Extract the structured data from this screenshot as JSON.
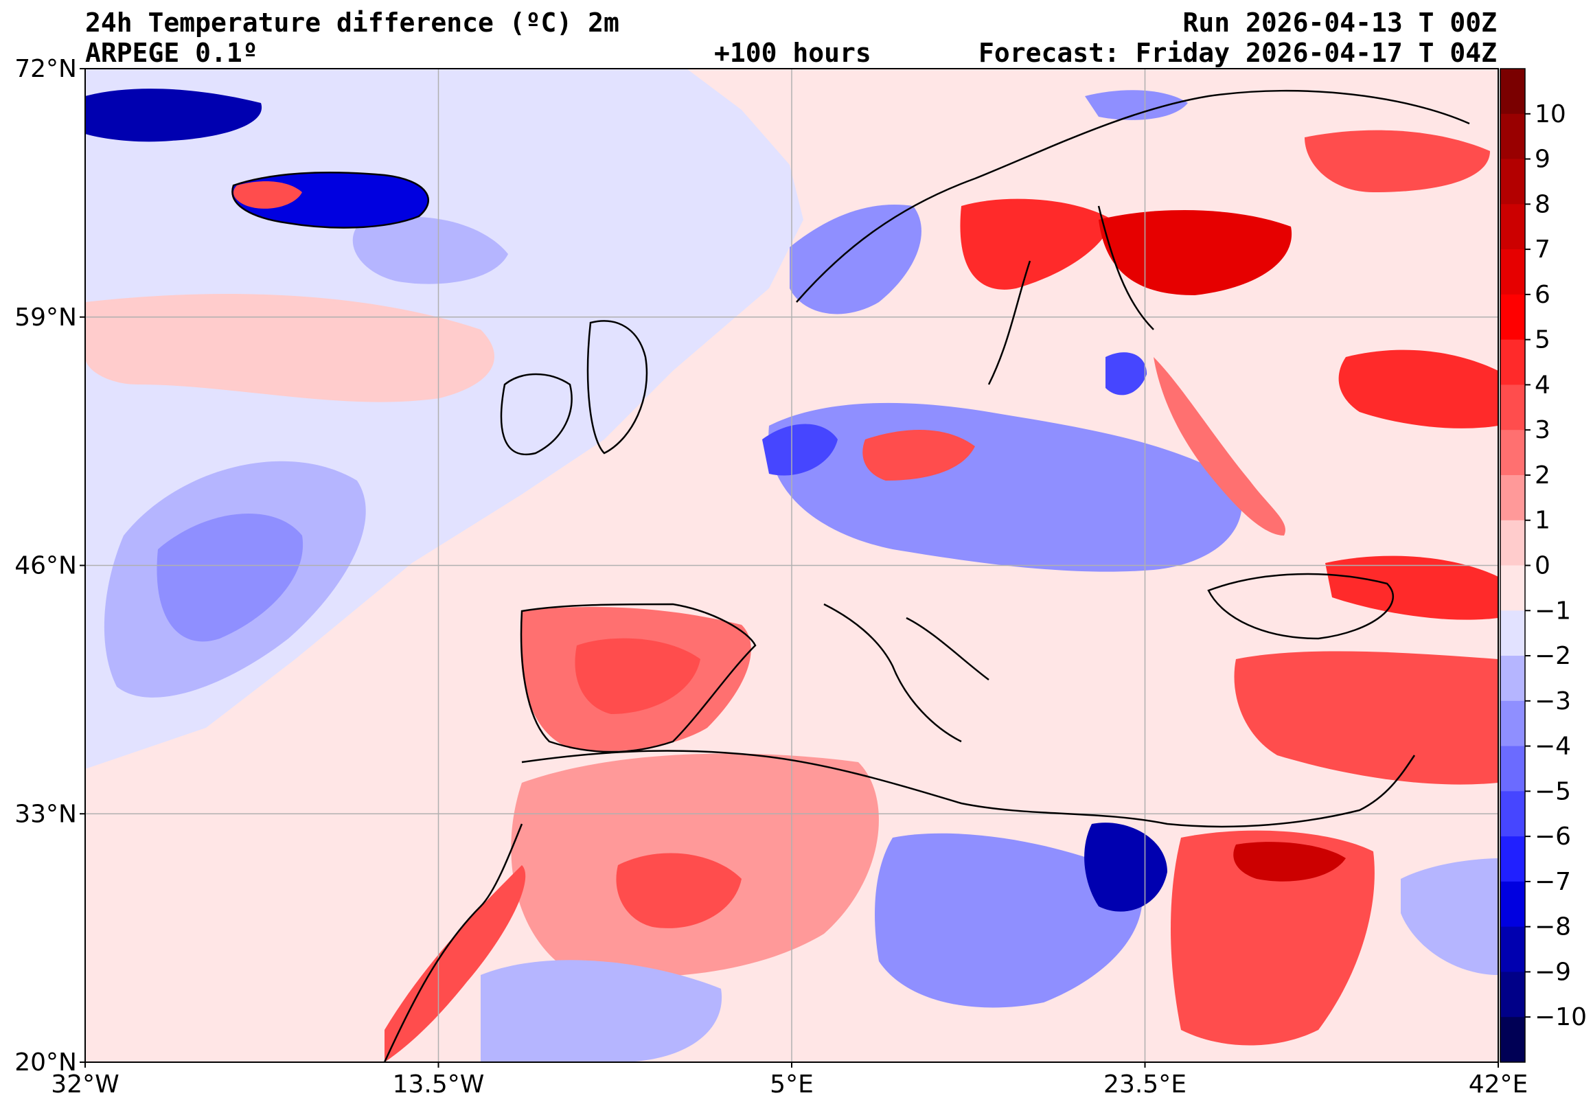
{
  "header": {
    "title_line1": "24h Temperature difference (ºC) 2m",
    "title_line2": "ARPEGE 0.1º",
    "lead_time": "+100 hours",
    "run": "Run 2026-04-13 T 00Z",
    "forecast": "Forecast: Friday 2026-04-17 T 04Z"
  },
  "map": {
    "lon_range": [
      -32,
      42
    ],
    "lat_range": [
      20,
      72
    ],
    "lat_ticks": [
      {
        "value": 72,
        "label": "72°N"
      },
      {
        "value": 59,
        "label": "59°N"
      },
      {
        "value": 46,
        "label": "46°N"
      },
      {
        "value": 33,
        "label": "33°N"
      },
      {
        "value": 20,
        "label": "20°N"
      }
    ],
    "lon_ticks": [
      {
        "value": -32,
        "label": "32°W"
      },
      {
        "value": -13.5,
        "label": "13.5°W"
      },
      {
        "value": 5,
        "label": "5°E"
      },
      {
        "value": 23.5,
        "label": "23.5°E"
      },
      {
        "value": 42,
        "label": "42°E"
      }
    ],
    "colors": {
      "ocean_background": "#ffe6e6",
      "slight_cool": "#e2e2ff",
      "coastline": "#000000",
      "gridline": "#b0b0b0"
    }
  },
  "colorbar": {
    "ticks": [
      10,
      9,
      8,
      7,
      6,
      5,
      4,
      3,
      2,
      1,
      0,
      -1,
      -2,
      -3,
      -4,
      -5,
      -6,
      -7,
      -8,
      -9,
      -10
    ],
    "labels": [
      "10",
      "9",
      "8",
      "7",
      "6",
      "5",
      "4",
      "3",
      "2",
      "1",
      "0",
      "−1",
      "−2",
      "−3",
      "−4",
      "−5",
      "−6",
      "−7",
      "−8",
      "−9",
      "−10"
    ],
    "colors_top_to_bottom": [
      "#7a0000",
      "#990000",
      "#b30000",
      "#cc0000",
      "#e60000",
      "#ff0000",
      "#ff2a2a",
      "#ff4d4d",
      "#ff7070",
      "#ff9999",
      "#ffcccc",
      "#ffe6e6",
      "#e2e2ff",
      "#b5b5ff",
      "#8f8fff",
      "#6b6bff",
      "#4646ff",
      "#2020ff",
      "#0000e0",
      "#0000b0",
      "#000088",
      "#000055"
    ]
  }
}
